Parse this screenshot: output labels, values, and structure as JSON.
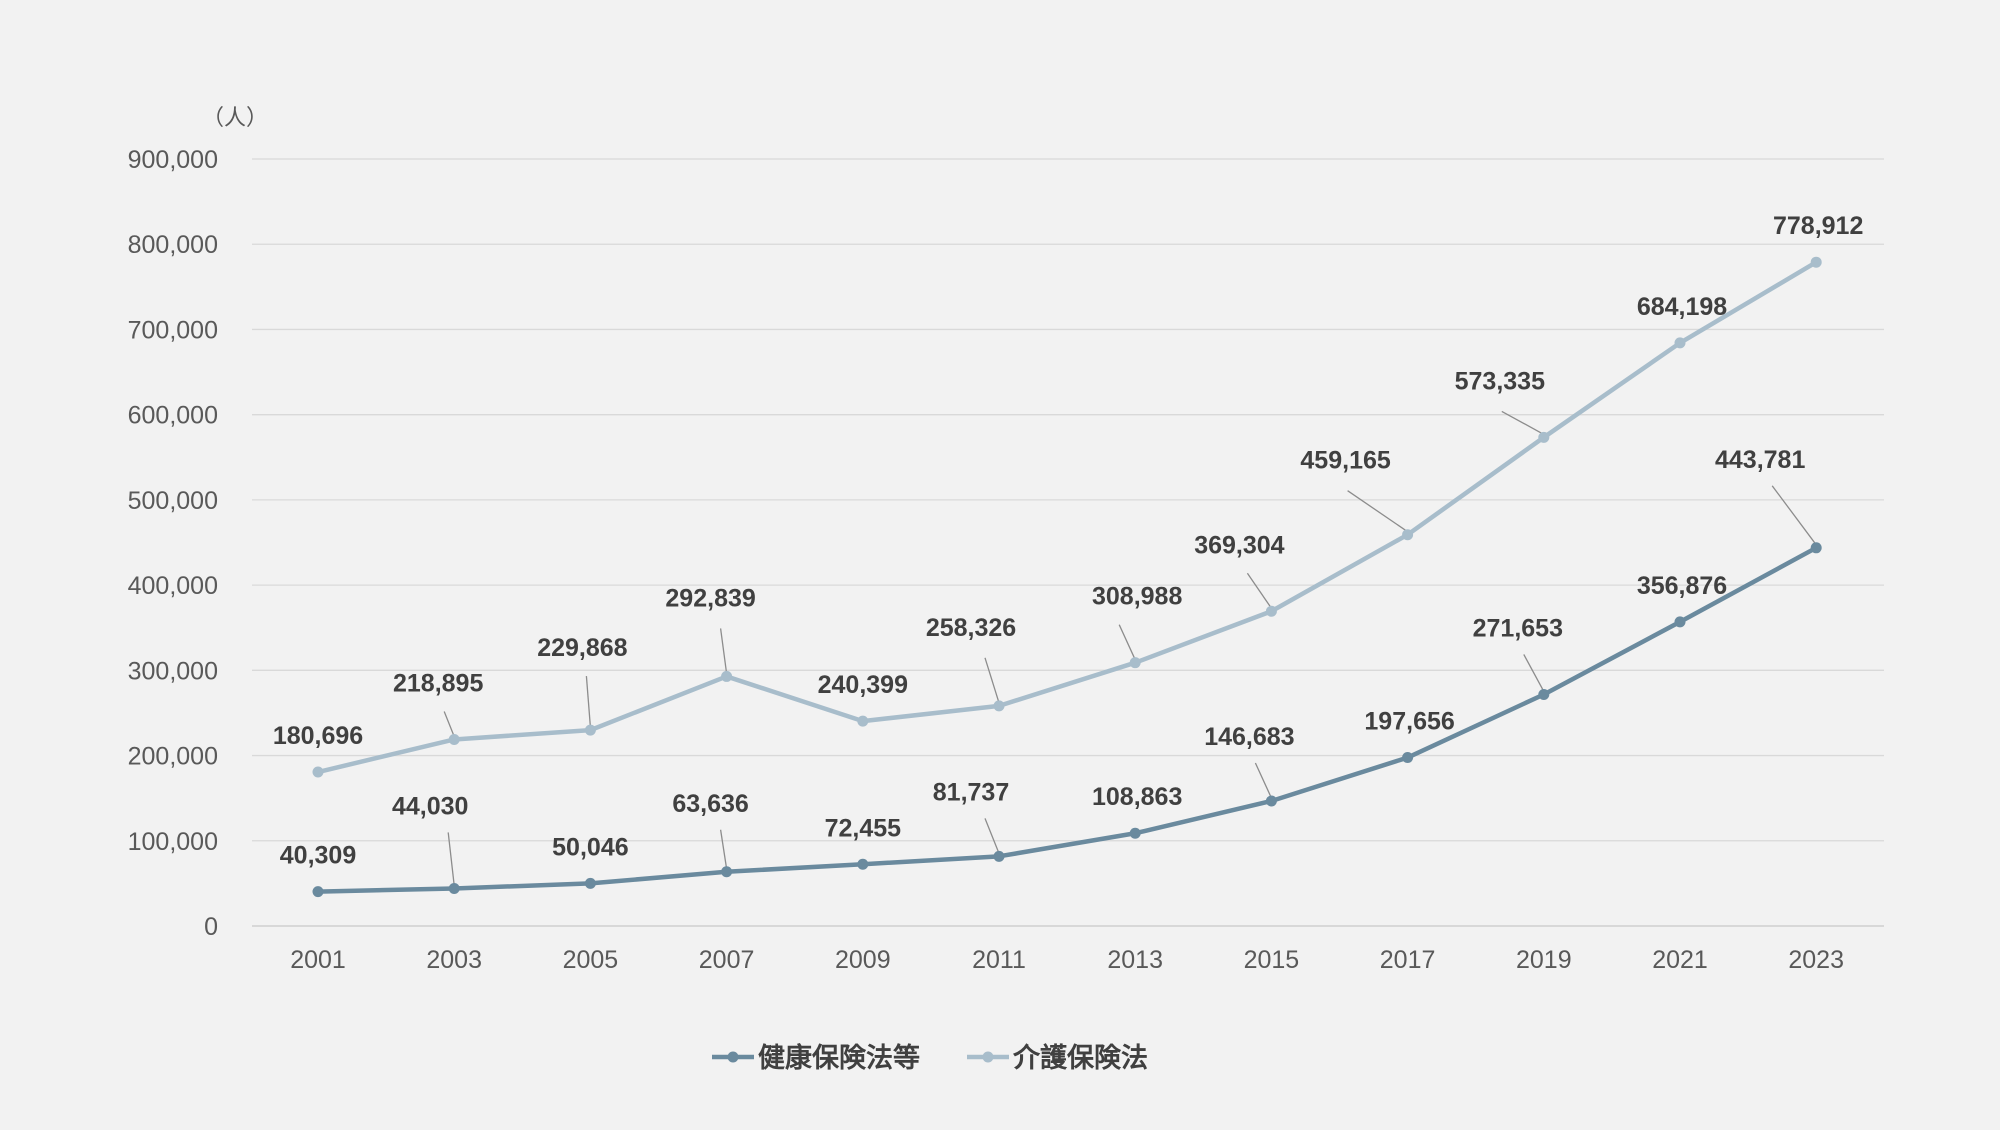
{
  "chart_data": {
    "type": "line",
    "unit_label": "（人）",
    "categories": [
      "2001",
      "2003",
      "2005",
      "2007",
      "2009",
      "2011",
      "2013",
      "2015",
      "2017",
      "2019",
      "2021",
      "2023"
    ],
    "ylim": [
      0,
      900000
    ],
    "yticks": [
      0,
      100000,
      200000,
      300000,
      400000,
      500000,
      600000,
      700000,
      800000,
      900000
    ],
    "ytick_labels": [
      "0",
      "100,000",
      "200,000",
      "300,000",
      "400,000",
      "500,000",
      "600,000",
      "700,000",
      "800,000",
      "900,000"
    ],
    "grid": true,
    "legend_position": "bottom",
    "series": [
      {
        "name": "健康保険法等",
        "color": "#6a8a9e",
        "values": [
          40309,
          44030,
          50046,
          63636,
          72455,
          81737,
          108863,
          146683,
          197656,
          271653,
          356876,
          443781
        ],
        "labels": [
          "40,309",
          "44,030",
          "50,046",
          "63,636",
          "72,455",
          "81,737",
          "108,863",
          "146,683",
          "197,656",
          "271,653",
          "356,876",
          "443,781"
        ]
      },
      {
        "name": "介護保険法",
        "color": "#a8bdcb",
        "values": [
          180696,
          218895,
          229868,
          292839,
          240399,
          258326,
          308988,
          369304,
          459165,
          573335,
          684198,
          778912
        ],
        "labels": [
          "180,696",
          "218,895",
          "229,868",
          "292,839",
          "240,399",
          "258,326",
          "308,988",
          "369,304",
          "459,165",
          "573,335",
          "684,198",
          "778,912"
        ]
      }
    ]
  }
}
